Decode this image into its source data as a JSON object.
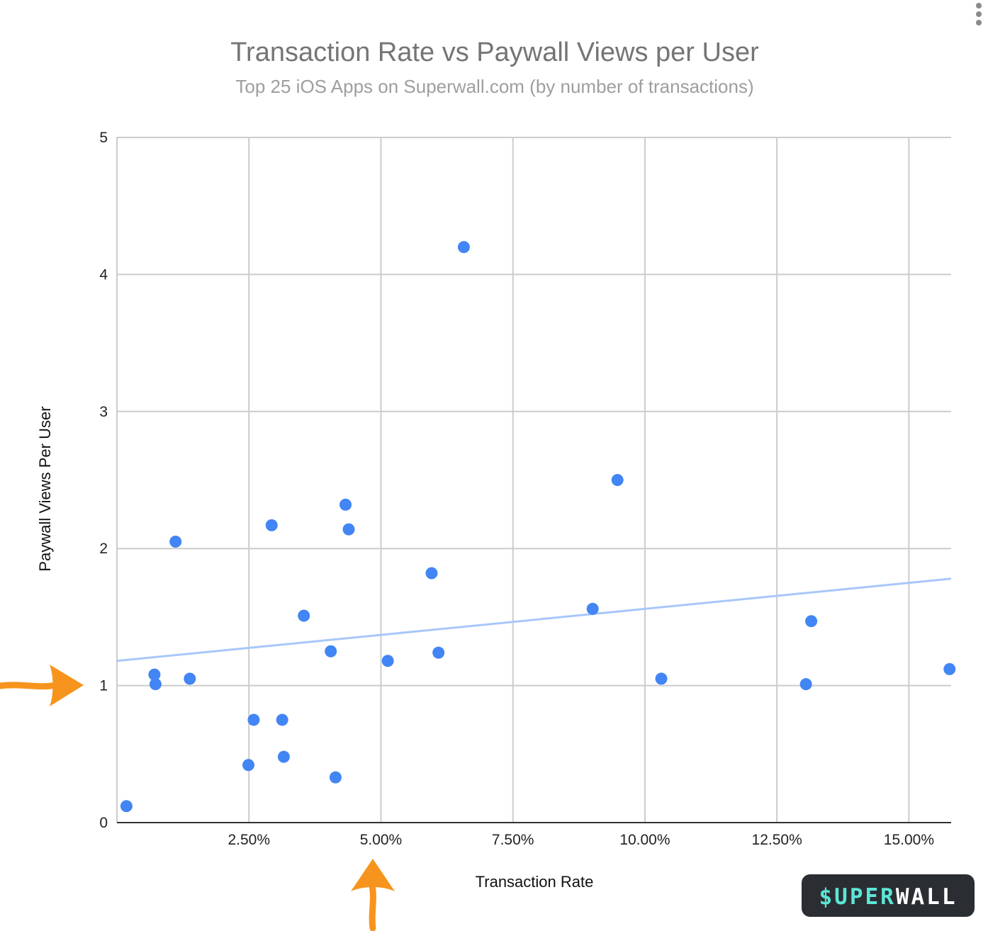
{
  "menu_icon": "vertical-dots-icon",
  "logo": {
    "text_a": "$UPER",
    "text_b": "WALL",
    "color_a": "#5ce6d6",
    "color_b": "#ffffff",
    "bg": "#2a2e33"
  },
  "annotations": {
    "arrow_color": "#f7941d",
    "arrows": [
      "arrow-pointing-at-y-1",
      "arrow-pointing-at-x-5-percent"
    ]
  },
  "colors": {
    "point": "#4285f4",
    "trendline": "#a8c7fa",
    "grid": "#cccccc",
    "axis": "#333333"
  },
  "chart_data": {
    "type": "scatter",
    "title": "Transaction Rate vs Paywall Views per User",
    "subtitle": "Top 25 iOS Apps on Superwall.com (by number of transactions)",
    "xlabel": "Transaction Rate",
    "ylabel": "Paywall Views Per User",
    "xlim": [
      0.0,
      0.158
    ],
    "ylim": [
      0,
      5
    ],
    "x_ticks": [
      {
        "value": 0.025,
        "label": "2.50%"
      },
      {
        "value": 0.05,
        "label": "5.00%"
      },
      {
        "value": 0.075,
        "label": "7.50%"
      },
      {
        "value": 0.1,
        "label": "10.00%"
      },
      {
        "value": 0.125,
        "label": "12.50%"
      },
      {
        "value": 0.15,
        "label": "15.00%"
      }
    ],
    "y_ticks": [
      {
        "value": 0,
        "label": "0"
      },
      {
        "value": 1,
        "label": "1"
      },
      {
        "value": 2,
        "label": "2"
      },
      {
        "value": 3,
        "label": "3"
      },
      {
        "value": 4,
        "label": "4"
      },
      {
        "value": 5,
        "label": "5"
      }
    ],
    "grid": true,
    "legend": "none",
    "points": [
      {
        "x": 0.0018,
        "y": 0.12
      },
      {
        "x": 0.0071,
        "y": 1.08
      },
      {
        "x": 0.0073,
        "y": 1.01
      },
      {
        "x": 0.0111,
        "y": 2.05
      },
      {
        "x": 0.0138,
        "y": 1.05
      },
      {
        "x": 0.0249,
        "y": 0.42
      },
      {
        "x": 0.0259,
        "y": 0.75
      },
      {
        "x": 0.0293,
        "y": 2.17
      },
      {
        "x": 0.0313,
        "y": 0.75
      },
      {
        "x": 0.0316,
        "y": 0.48
      },
      {
        "x": 0.0354,
        "y": 1.51
      },
      {
        "x": 0.0405,
        "y": 1.25
      },
      {
        "x": 0.0414,
        "y": 0.33
      },
      {
        "x": 0.0433,
        "y": 2.32
      },
      {
        "x": 0.0439,
        "y": 2.14
      },
      {
        "x": 0.0513,
        "y": 1.18
      },
      {
        "x": 0.0596,
        "y": 1.82
      },
      {
        "x": 0.0609,
        "y": 1.24
      },
      {
        "x": 0.0657,
        "y": 4.2
      },
      {
        "x": 0.0901,
        "y": 1.56
      },
      {
        "x": 0.0948,
        "y": 2.5
      },
      {
        "x": 0.1031,
        "y": 1.05
      },
      {
        "x": 0.1305,
        "y": 1.01
      },
      {
        "x": 0.1315,
        "y": 1.47
      },
      {
        "x": 0.1577,
        "y": 1.12
      }
    ],
    "trendline": [
      {
        "x": 0.0,
        "y": 1.18
      },
      {
        "x": 0.158,
        "y": 1.78
      }
    ]
  }
}
